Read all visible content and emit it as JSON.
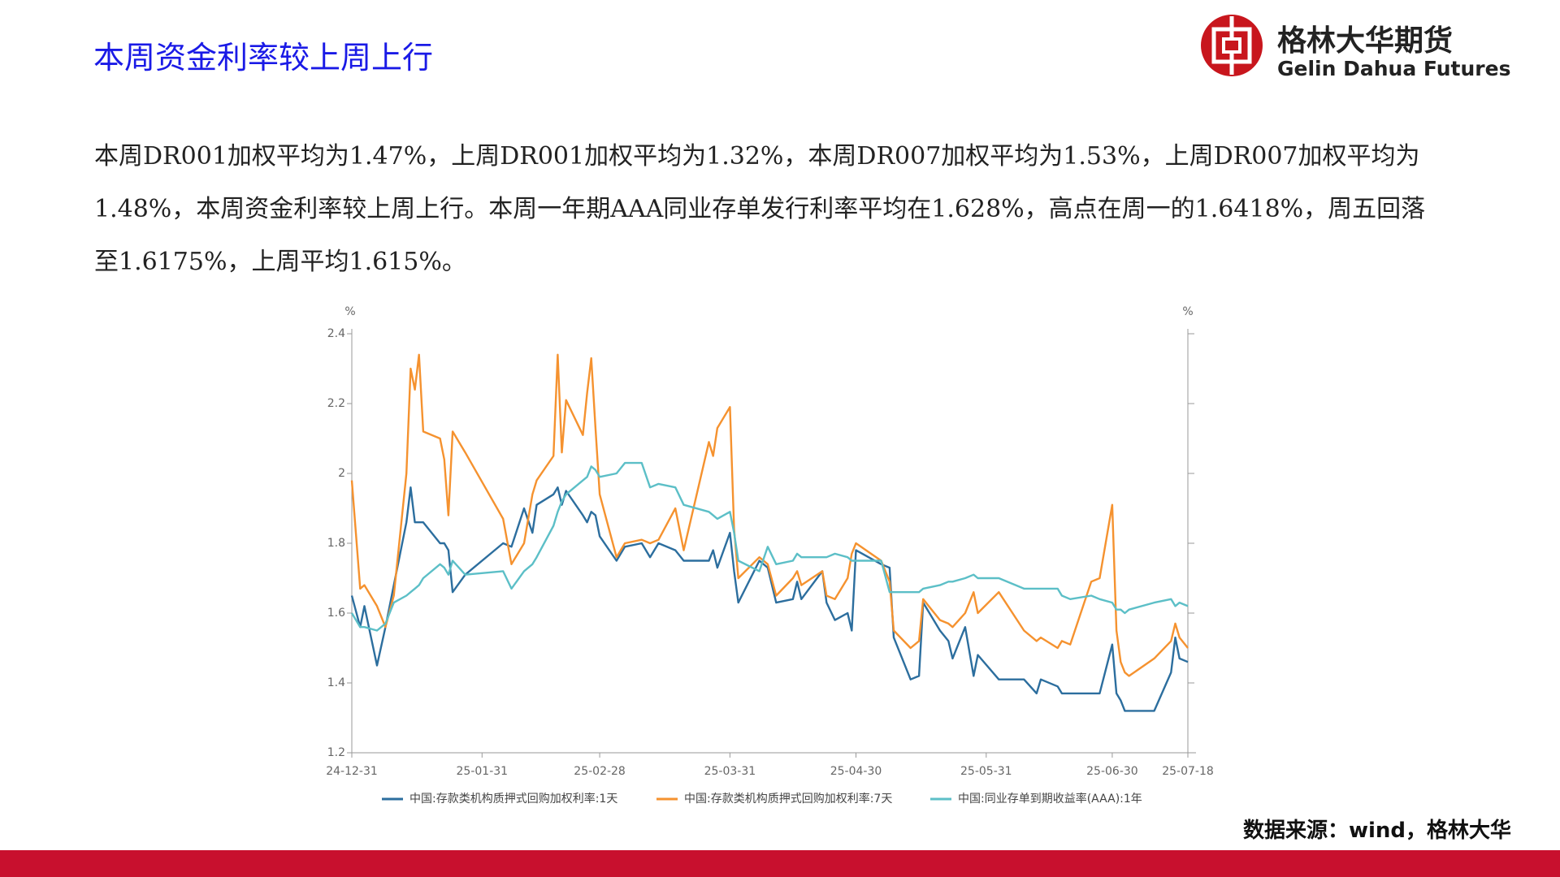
{
  "title": "本周资金利率较上周上行",
  "logo": {
    "name_cn": "格林大华期货",
    "name_en": "Gelin Dahua Futures"
  },
  "paragraph": "本周DR001加权平均为1.47%，上周DR001加权平均为1.32%，本周DR007加权平均为1.53%，上周DR007加权平均为1.48%，本周资金利率较上周上行。本周一年期AAA同业存单发行利率平均在1.628%，高点在周一的1.6418%，周五回落至1.6175%，上周平均1.615%。",
  "source": "数据来源：wind，格林大华",
  "chart_data": {
    "type": "line",
    "y_unit": "%",
    "y2_unit": "%",
    "x": [
      "24-12-31",
      "25-01-02",
      "25-01-03",
      "25-01-06",
      "25-01-08",
      "25-01-10",
      "25-01-13",
      "25-01-14",
      "25-01-15",
      "25-01-16",
      "25-01-17",
      "25-01-21",
      "25-01-22",
      "25-01-23",
      "25-01-24",
      "25-01-27",
      "25-02-05",
      "25-02-07",
      "25-02-10",
      "25-02-12",
      "25-02-13",
      "25-02-17",
      "25-02-18",
      "25-02-19",
      "25-02-20",
      "25-02-24",
      "25-02-25",
      "25-02-26",
      "25-02-27",
      "25-02-28",
      "25-03-04",
      "25-03-06",
      "25-03-10",
      "25-03-12",
      "25-03-14",
      "25-03-18",
      "25-03-20",
      "25-03-26",
      "25-03-27",
      "25-03-28",
      "25-03-31",
      "25-04-01",
      "25-04-02",
      "25-04-07",
      "25-04-09",
      "25-04-11",
      "25-04-15",
      "25-04-16",
      "25-04-17",
      "25-04-22",
      "25-04-23",
      "25-04-25",
      "25-04-28",
      "25-04-29",
      "25-04-30",
      "25-05-06",
      "25-05-08",
      "25-05-09",
      "25-05-13",
      "25-05-15",
      "25-05-16",
      "25-05-20",
      "25-05-22",
      "25-05-23",
      "25-05-26",
      "25-05-28",
      "25-05-29",
      "25-06-03",
      "25-06-09",
      "25-06-12",
      "25-06-13",
      "25-06-17",
      "25-06-18",
      "25-06-20",
      "25-06-25",
      "25-06-27",
      "25-06-30",
      "25-07-01",
      "25-07-02",
      "25-07-03",
      "25-07-04",
      "25-07-10",
      "25-07-14",
      "25-07-15",
      "25-07-16",
      "25-07-18"
    ],
    "xlim": [
      "24-12-31",
      "25-07-18"
    ],
    "xticks": [
      "24-12-31",
      "25-01-31",
      "25-02-28",
      "25-03-31",
      "25-04-30",
      "25-05-31",
      "25-06-30",
      "25-07-18"
    ],
    "ylim": [
      1.2,
      2.4
    ],
    "yticks": [
      1.2,
      1.4,
      1.6,
      1.8,
      2,
      2.2,
      2.4
    ],
    "grid": false,
    "series": [
      {
        "name": "中国:存款类机构质押式回购加权利率:1天",
        "color": "#2c6e9e",
        "values": [
          1.65,
          1.56,
          1.62,
          1.45,
          1.56,
          1.68,
          1.86,
          1.96,
          1.86,
          1.86,
          1.86,
          1.8,
          1.8,
          1.78,
          1.66,
          1.71,
          1.8,
          1.79,
          1.9,
          1.83,
          1.91,
          1.94,
          1.96,
          1.91,
          1.95,
          1.88,
          1.86,
          1.89,
          1.88,
          1.82,
          1.75,
          1.79,
          1.8,
          1.76,
          1.8,
          1.78,
          1.75,
          1.75,
          1.78,
          1.73,
          1.83,
          1.72,
          1.63,
          1.75,
          1.73,
          1.63,
          1.64,
          1.69,
          1.64,
          1.72,
          1.63,
          1.58,
          1.6,
          1.55,
          1.78,
          1.74,
          1.73,
          1.53,
          1.41,
          1.42,
          1.63,
          1.55,
          1.52,
          1.47,
          1.56,
          1.42,
          1.48,
          1.41,
          1.41,
          1.37,
          1.41,
          1.39,
          1.37,
          1.37,
          1.37,
          1.37,
          1.51,
          1.37,
          1.35,
          1.32,
          1.32,
          1.32,
          1.43,
          1.53,
          1.47,
          1.46
        ]
      },
      {
        "name": "中国:存款类机构质押式回购加权利率:7天",
        "color": "#f5922f",
        "values": [
          1.98,
          1.67,
          1.68,
          1.62,
          1.56,
          1.65,
          2.0,
          2.3,
          2.24,
          2.34,
          2.12,
          2.1,
          2.04,
          1.88,
          2.12,
          2.06,
          1.87,
          1.74,
          1.8,
          1.94,
          1.98,
          2.05,
          2.34,
          2.06,
          2.21,
          2.11,
          2.23,
          2.33,
          2.13,
          1.94,
          1.76,
          1.8,
          1.81,
          1.8,
          1.81,
          1.9,
          1.78,
          2.09,
          2.05,
          2.13,
          2.19,
          1.84,
          1.7,
          1.76,
          1.74,
          1.65,
          1.7,
          1.72,
          1.68,
          1.72,
          1.65,
          1.64,
          1.7,
          1.77,
          1.8,
          1.75,
          1.69,
          1.55,
          1.5,
          1.52,
          1.64,
          1.58,
          1.57,
          1.56,
          1.6,
          1.66,
          1.6,
          1.66,
          1.55,
          1.52,
          1.53,
          1.5,
          1.52,
          1.51,
          1.69,
          1.7,
          1.91,
          1.55,
          1.46,
          1.43,
          1.42,
          1.47,
          1.52,
          1.57,
          1.53,
          1.5
        ]
      },
      {
        "name": "中国:同业存单到期收益率(AAA):1年",
        "color": "#5cbfc7",
        "values": [
          1.6,
          1.56,
          1.56,
          1.55,
          1.57,
          1.63,
          1.65,
          1.66,
          1.67,
          1.68,
          1.7,
          1.74,
          1.73,
          1.71,
          1.75,
          1.71,
          1.72,
          1.67,
          1.72,
          1.74,
          1.76,
          1.85,
          1.89,
          1.92,
          1.94,
          1.98,
          1.99,
          2.02,
          2.01,
          1.99,
          2.0,
          2.03,
          2.03,
          1.96,
          1.97,
          1.96,
          1.91,
          1.89,
          1.88,
          1.87,
          1.89,
          1.83,
          1.75,
          1.72,
          1.79,
          1.74,
          1.75,
          1.77,
          1.76,
          1.76,
          1.76,
          1.77,
          1.76,
          1.75,
          1.75,
          1.75,
          1.66,
          1.66,
          1.66,
          1.66,
          1.67,
          1.68,
          1.69,
          1.69,
          1.7,
          1.71,
          1.7,
          1.7,
          1.67,
          1.67,
          1.67,
          1.67,
          1.65,
          1.64,
          1.65,
          1.64,
          1.63,
          1.61,
          1.61,
          1.6,
          1.61,
          1.63,
          1.64,
          1.62,
          1.63,
          1.62
        ]
      }
    ]
  }
}
